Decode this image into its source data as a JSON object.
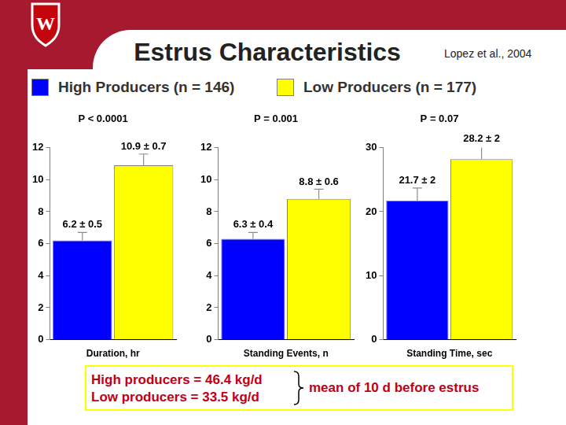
{
  "slide": {
    "title": "Estrus Characteristics",
    "citation": "Lopez et al., 2004",
    "logo_text": "W",
    "footer": {
      "lines": [
        "High producers = 46.4 kg/d",
        "Low producers = 33.5 kg/d"
      ],
      "note": "mean of 10 d before estrus"
    }
  },
  "chart_data": [
    {
      "type": "bar",
      "title": "P < 0.0001",
      "categories": [
        "Duration, hr"
      ],
      "series": [
        {
          "name": "High Producers (n = 146)",
          "color": "#0000ff",
          "values": [
            6.2
          ],
          "errors": [
            0.5
          ],
          "value_labels": [
            "6.2 ± 0.5"
          ]
        },
        {
          "name": "Low Producers (n = 177)",
          "color": "#ffff00",
          "values": [
            10.9
          ],
          "errors": [
            0.7
          ],
          "value_labels": [
            "10.9 ± 0.7"
          ]
        }
      ],
      "ylim": [
        0,
        12
      ],
      "yticks": [
        0,
        2,
        4,
        6,
        8,
        10,
        12
      ],
      "grid": false,
      "data_labels": true
    },
    {
      "type": "bar",
      "title": "P = 0.001",
      "categories": [
        "Standing Events, n"
      ],
      "series": [
        {
          "name": "High Producers (n = 146)",
          "color": "#0000ff",
          "values": [
            6.3
          ],
          "errors": [
            0.4
          ],
          "value_labels": [
            "6.3 ± 0.4"
          ]
        },
        {
          "name": "Low Producers (n = 177)",
          "color": "#ffff00",
          "values": [
            8.8
          ],
          "errors": [
            0.6
          ],
          "value_labels": [
            "8.8 ± 0.6"
          ]
        }
      ],
      "ylim": [
        0,
        12
      ],
      "yticks": [
        0,
        2,
        4,
        6,
        8,
        10,
        12
      ],
      "grid": false,
      "data_labels": true
    },
    {
      "type": "bar",
      "title": "P = 0.07",
      "categories": [
        "Standing Time, sec"
      ],
      "series": [
        {
          "name": "High Producers (n = 146)",
          "color": "#0000ff",
          "values": [
            21.7
          ],
          "errors": [
            2
          ],
          "value_labels": [
            "21.7 ± 2"
          ]
        },
        {
          "name": "Low Producers (n = 177)",
          "color": "#ffff00",
          "values": [
            28.2
          ],
          "errors": [
            2
          ],
          "value_labels": [
            "28.2 ± 2"
          ]
        }
      ],
      "ylim": [
        0,
        30
      ],
      "yticks": [
        0,
        10,
        20,
        30
      ],
      "grid": false,
      "data_labels": true
    }
  ]
}
